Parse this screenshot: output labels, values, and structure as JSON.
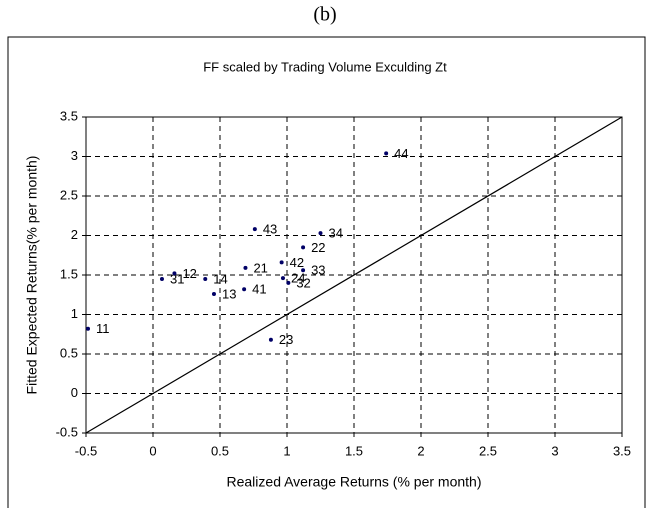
{
  "heading": "(b)",
  "chart_data": {
    "type": "scatter",
    "title": "FF  scaled by Trading Volume Exculding  Zt",
    "x_label": "Realized Average Returns (% per month)",
    "y_label": "Fitted Expected Returns(% per month)",
    "labels": [
      "11",
      "31",
      "12",
      "14",
      "13",
      "41",
      "21",
      "43",
      "42",
      "24",
      "32",
      "33",
      "22",
      "34",
      "23",
      "44"
    ],
    "x": [
      -0.485,
      0.067,
      0.16,
      0.39,
      0.455,
      0.68,
      0.69,
      0.76,
      0.96,
      0.97,
      1.01,
      1.12,
      1.12,
      1.25,
      0.88,
      1.74
    ],
    "y": [
      0.82,
      1.45,
      1.52,
      1.45,
      1.26,
      1.32,
      1.59,
      2.08,
      1.66,
      1.46,
      1.4,
      1.56,
      1.85,
      2.03,
      0.68,
      3.04
    ],
    "color": "#000066",
    "xlim": [
      -0.5,
      3.5
    ],
    "ylim": [
      -0.5,
      3.5
    ],
    "xticks": [
      -0.5,
      0,
      0.5,
      1,
      1.5,
      2,
      2.5,
      3,
      3.5
    ],
    "yticks": [
      -0.5,
      0,
      0.5,
      1,
      1.5,
      2,
      2.5,
      3,
      3.5
    ],
    "grid": true,
    "reference_line": true
  }
}
